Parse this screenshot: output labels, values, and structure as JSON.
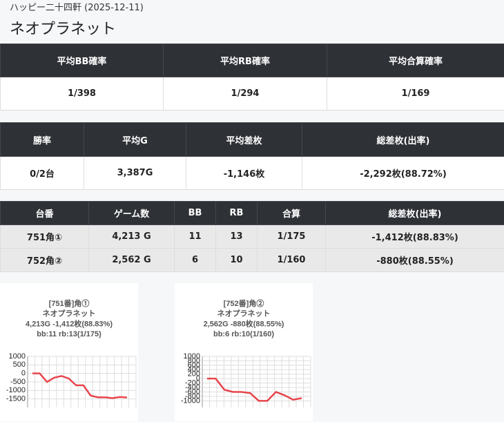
{
  "header": {
    "breadcrumb": "ハッピー二十四軒 (2025-12-11)",
    "title": "ネオプラネット"
  },
  "summary1": {
    "headers": [
      "平均BB確率",
      "平均RB確率",
      "平均合算確率"
    ],
    "values": [
      "1/398",
      "1/294",
      "1/169"
    ]
  },
  "summary2": {
    "headers": [
      "勝率",
      "平均G",
      "平均差枚",
      "総差枚(出率)"
    ],
    "values": [
      "0/2台",
      "3,387G",
      "-1,146枚",
      "-2,292枚(88.72%)"
    ]
  },
  "machines": {
    "headers": [
      "台番",
      "ゲーム数",
      "BB",
      "RB",
      "合算",
      "総差枚(出率)"
    ],
    "rows": [
      [
        "751角①",
        "4,213 G",
        "11",
        "13",
        "1/175",
        "-1,412枚(88.83%)"
      ],
      [
        "752角②",
        "2,562 G",
        "6",
        "10",
        "1/160",
        "-880枚(88.55%)"
      ]
    ]
  },
  "chart_data": [
    {
      "type": "line",
      "title": [
        "[751番]角①",
        "ネオプラネット",
        "4,213G -1,412枚(88.83%)",
        "bb:11 rb:13(1/175)"
      ],
      "values": [
        0,
        0,
        -500,
        -250,
        -150,
        -300,
        -700,
        -700,
        -1300,
        -1400,
        -1400,
        -1450,
        -1380,
        -1412
      ],
      "color": "#e8454c",
      "ylim": [
        -2000,
        1000
      ],
      "yticks": [
        1000,
        500,
        0,
        -500,
        -1000,
        -1500
      ],
      "grid": true
    },
    {
      "type": "line",
      "title": [
        "[752番]角②",
        "ネオプラネット",
        "2,562G -880枚(88.55%)",
        "bb:6 rb:10(1/160)"
      ],
      "values": [
        0,
        0,
        -500,
        -600,
        -600,
        -650,
        -1000,
        -1000,
        -600,
        -750,
        -950,
        -880
      ],
      "color": "#e8454c",
      "ylim": [
        -1300,
        1000
      ],
      "yticks": [
        1000,
        800,
        600,
        400,
        200,
        0,
        -200,
        -400,
        -600,
        -800,
        -1000
      ],
      "grid": true
    }
  ]
}
